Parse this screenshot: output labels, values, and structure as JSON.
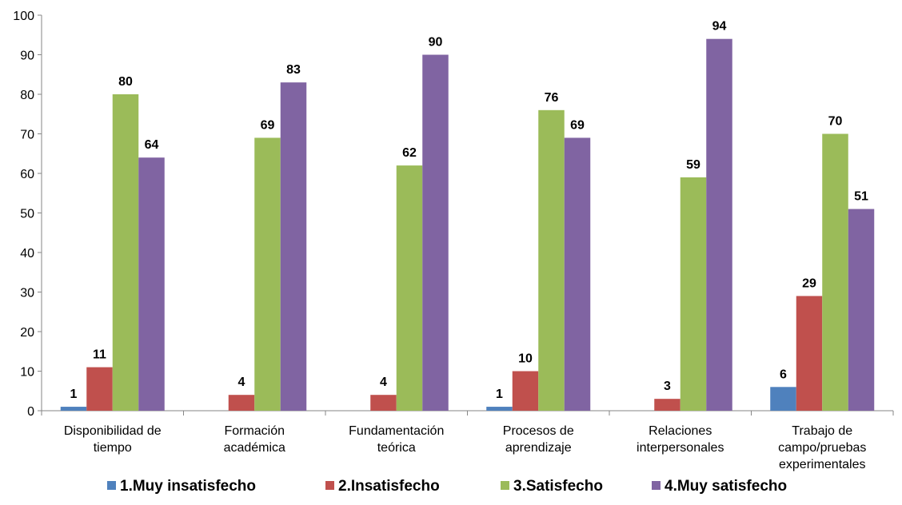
{
  "chart_data": {
    "type": "bar",
    "categories": [
      [
        "Disponibilidad de",
        "tiempo"
      ],
      [
        "Formación",
        "académica"
      ],
      [
        "Fundamentación",
        "teórica"
      ],
      [
        "Procesos de",
        "aprendizaje"
      ],
      [
        "Relaciones",
        "interpersonales"
      ],
      [
        "Trabajo de",
        "campo/pruebas",
        "experimentales"
      ]
    ],
    "series": [
      {
        "name": "1.Muy insatisfecho",
        "color": "#4F81BD",
        "values": [
          1,
          0,
          0,
          1,
          0,
          6
        ]
      },
      {
        "name": "2.Insatisfecho",
        "color": "#C0504D",
        "values": [
          11,
          4,
          4,
          10,
          3,
          29
        ]
      },
      {
        "name": "3.Satisfecho",
        "color": "#9BBB59",
        "values": [
          80,
          69,
          62,
          76,
          59,
          70
        ]
      },
      {
        "name": "4.Muy satisfecho",
        "color": "#8064A2",
        "values": [
          64,
          83,
          90,
          69,
          94,
          51
        ]
      }
    ],
    "ylim": [
      0,
      100
    ],
    "yticks": [
      0,
      10,
      20,
      30,
      40,
      50,
      60,
      70,
      80,
      90,
      100
    ],
    "grid": false,
    "legend": "bottom"
  }
}
